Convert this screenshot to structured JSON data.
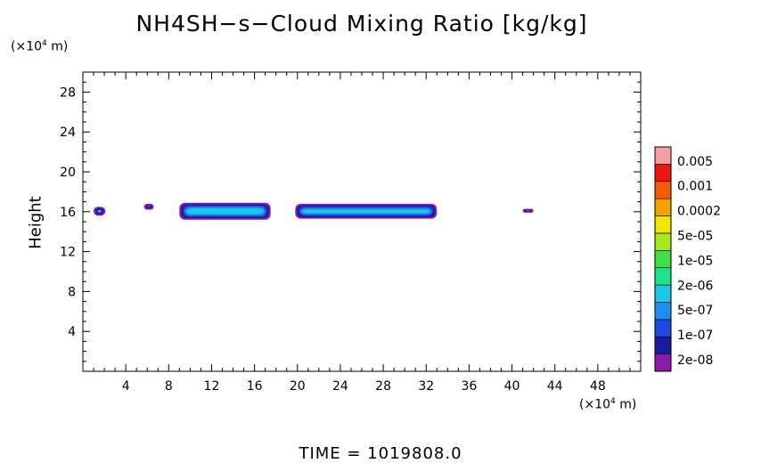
{
  "chart_data": {
    "type": "heatmap",
    "title": "NH4SH−s−Cloud Mixing Ratio [kg/kg]",
    "ylabel": "Height",
    "y_unit": "(×10",
    "x_unit": "(×10",
    "unit_exp": "4",
    "unit_suffix": " m)",
    "xlim": [
      0,
      52
    ],
    "ylim": [
      0,
      30
    ],
    "x_ticks": [
      4,
      8,
      12,
      16,
      20,
      24,
      28,
      32,
      36,
      40,
      44,
      48
    ],
    "y_ticks": [
      4,
      8,
      12,
      16,
      20,
      24,
      28
    ],
    "legend": {
      "placement": "right",
      "levels": [
        "2e-08",
        "1e-07",
        "5e-07",
        "2e-06",
        "1e-05",
        "5e-05",
        "0.0002",
        "0.001",
        "0.005"
      ],
      "colors": [
        "#8b1aa6",
        "#1a1a9e",
        "#1d4be0",
        "#1f8cf0",
        "#19c8e6",
        "#1ee28c",
        "#3ee04a",
        "#a8e61e",
        "#f2e600",
        "#f5a300",
        "#f55a0a",
        "#f01414",
        "#f6a0a0"
      ]
    },
    "clouds": [
      {
        "x": [
          1.0,
          2.1
        ],
        "y": [
          15.6,
          16.5
        ],
        "level": 4
      },
      {
        "x": [
          5.7,
          6.6
        ],
        "y": [
          16.2,
          16.8
        ],
        "level": 2
      },
      {
        "x": [
          9.0,
          17.5
        ],
        "y": [
          15.2,
          16.9
        ],
        "level": 4
      },
      {
        "x": [
          19.8,
          33.0
        ],
        "y": [
          15.3,
          16.8
        ],
        "level": 4
      },
      {
        "x": [
          41.0,
          42.0
        ],
        "y": [
          15.9,
          16.3
        ],
        "level": 2
      }
    ]
  },
  "footer": "TIME = 1019808.0"
}
